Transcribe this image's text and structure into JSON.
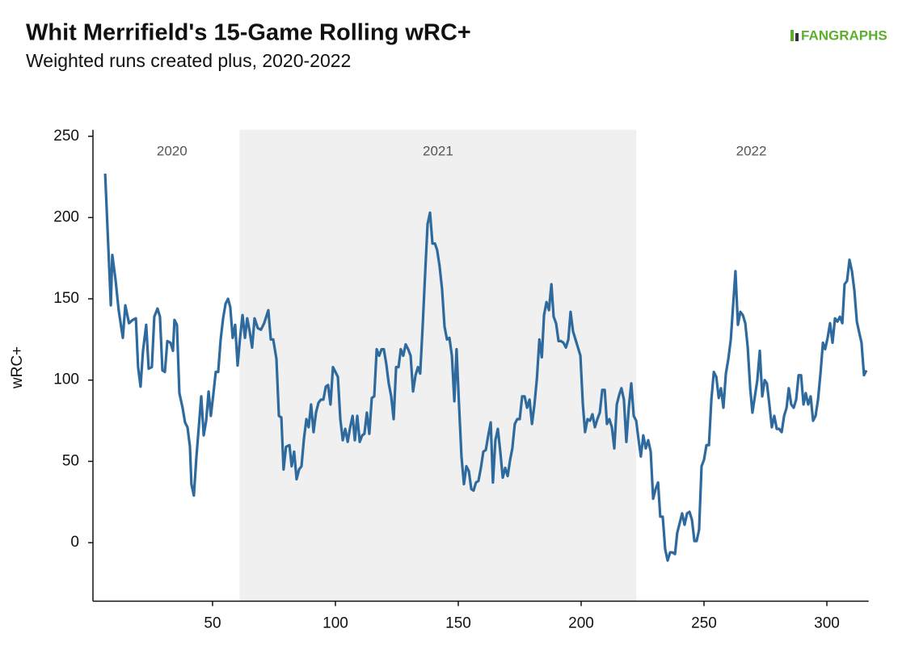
{
  "chart_data": {
    "type": "line",
    "title": "Whit Merrifield's 15-Game Rolling wRC+",
    "subtitle": "Weighted runs created plus, 2020-2022",
    "logo": "FANGRAPHS",
    "y_label": "wRC+",
    "xlim": [
      1,
      317
    ],
    "ylim": [
      -36,
      254
    ],
    "xticks": [
      50,
      100,
      150,
      200,
      250,
      300
    ],
    "yticks": [
      0,
      50,
      100,
      150,
      200,
      250
    ],
    "grid": false,
    "periods": [
      {
        "label": "2020",
        "start": 6,
        "end": 61,
        "shaded": false
      },
      {
        "label": "2021",
        "start": 61,
        "end": 222.5,
        "shaded": true
      },
      {
        "label": "2022",
        "start": 222.5,
        "end": 316,
        "shaded": false
      }
    ],
    "shade_color": "#f0f0f0",
    "series": [
      {
        "color": "#2e6a9e",
        "x": [
          6.3,
          8.6,
          9.2,
          10.5,
          11.8,
          13.5,
          14.5,
          16,
          17.5,
          18.8,
          19.7,
          20.7,
          21.7,
          23,
          24,
          25.3,
          26.3,
          27.6,
          28.6,
          29.6,
          30.6,
          31.6,
          32.9,
          33.9,
          34.5,
          35.5,
          36.5,
          37.8,
          38.8,
          39.8,
          40.8,
          41.4,
          42.4,
          43.4,
          44.4,
          45.4,
          46.4,
          47.4,
          48.4,
          49.3,
          50.3,
          51.3,
          52.3,
          53.3,
          54.3,
          55.3,
          56.3,
          57.2,
          58.2,
          59.2,
          60.2,
          61.2,
          62.2,
          63.2,
          64.1,
          65.1,
          66.1,
          67.1,
          68.4,
          69.7,
          71,
          72.7,
          73.7,
          74.7,
          76,
          77,
          78,
          78.9,
          79.9,
          81.3,
          82.2,
          83.2,
          84.2,
          85.2,
          86.2,
          87.2,
          88.2,
          89.1,
          90.1,
          91.1,
          92.1,
          93.1,
          94.1,
          95.1,
          96.1,
          97,
          98,
          99,
          100,
          101,
          102,
          103,
          104,
          105,
          106,
          107,
          107.9,
          108.9,
          109.9,
          110.9,
          111.8,
          112.8,
          113.8,
          114.8,
          115.8,
          116.8,
          117.8,
          118.8,
          119.7,
          120.7,
          121.7,
          122.7,
          123.7,
          124.7,
          125.7,
          126.6,
          127.6,
          128.6,
          129.6,
          130.6,
          131.6,
          132.6,
          133.6,
          134.5,
          135.5,
          136.5,
          137.5,
          138.5,
          139.5,
          140.5,
          141.4,
          142.4,
          143.4,
          144.4,
          145.4,
          146.4,
          147.4,
          148.4,
          149.3,
          150.3,
          151.3,
          152.3,
          153.3,
          154.3,
          155.3,
          156.2,
          157.2,
          158.2,
          159.2,
          160.2,
          161.2,
          162.2,
          163.2,
          164.1,
          165.1,
          166.1,
          167.1,
          168.1,
          169.1,
          170.1,
          171.1,
          172,
          173,
          174,
          175,
          176,
          177,
          178,
          179,
          180,
          181,
          182,
          183,
          184,
          184.9,
          185.9,
          186.9,
          187.9,
          188.8,
          189.8,
          190.8,
          191.8,
          192.8,
          193.8,
          194.8,
          195.7,
          196.7,
          197.7,
          198.7,
          199.7,
          200.7,
          201.6,
          202.6,
          203.6,
          204.6,
          205.6,
          206.6,
          207.6,
          208.6,
          209.6,
          210.5,
          211.5,
          212.5,
          213.5,
          214.5,
          215.5,
          216.4,
          217.4,
          218.4,
          219.4,
          220.4,
          221.4,
          222.4,
          223.4,
          224.3,
          225.3,
          226.3,
          227.3,
          228.3,
          229.3,
          230.3,
          231.3,
          232.2,
          233.2,
          234.2,
          235.2,
          236.2,
          237.2,
          238.2,
          239.1,
          240.1,
          241.1,
          242.1,
          243.1,
          244.1,
          245.1,
          246.1,
          247,
          248,
          249,
          250,
          251,
          252,
          253,
          254,
          255,
          256,
          256.9,
          257.9,
          258.9,
          259.9,
          260.9,
          261.8,
          262.8,
          263.8,
          264.8,
          265.8,
          266.8,
          267.8,
          268.8,
          269.7,
          270.7,
          271.7,
          272.7,
          273.7,
          274.7,
          275.6,
          276.6,
          277.6,
          278.6,
          279.6,
          280.6,
          281.6,
          282.6,
          283.6,
          284.5,
          285.5,
          286.5,
          287.5,
          288.5,
          289.5,
          290.5,
          291.4,
          292.4,
          293.4,
          294.4,
          295.4,
          296.4,
          297.4,
          298.4,
          299.3,
          300.3,
          301.3,
          302.3,
          303.3,
          304.3,
          305.3,
          306.3,
          307.2,
          308.2,
          309.2,
          310.2,
          311.2,
          312.2,
          313.2,
          314.1,
          315.1,
          316.1
        ],
        "values": [
          227,
          146,
          177,
          162,
          143,
          126,
          146,
          135,
          137,
          138,
          108,
          96,
          118,
          134,
          107,
          108,
          139,
          144,
          139,
          106,
          105,
          124,
          123,
          118,
          137,
          134,
          92,
          83,
          74,
          71,
          59,
          36,
          29,
          52,
          71,
          90,
          66,
          75,
          93,
          78,
          91,
          105,
          105,
          125,
          138,
          147,
          150,
          145,
          126,
          134,
          109,
          126,
          140,
          126,
          138,
          130,
          120,
          138,
          132,
          131,
          135,
          143,
          125,
          125,
          113,
          78,
          77,
          45,
          59,
          60,
          47,
          56,
          39,
          45,
          47,
          64,
          76,
          71,
          85,
          68,
          80,
          86,
          88,
          88,
          96,
          97,
          85,
          108,
          105,
          102,
          76,
          63,
          70,
          62,
          71,
          78,
          63,
          78,
          62,
          66,
          67,
          80,
          67,
          89,
          90,
          119,
          115,
          119,
          119,
          110,
          98,
          90,
          76,
          108,
          108,
          119,
          115,
          122,
          119,
          115,
          93,
          103,
          108,
          104,
          133,
          165,
          196,
          203,
          184,
          184,
          180,
          170,
          156,
          133,
          125,
          126,
          115,
          87,
          119,
          85,
          53,
          36,
          47,
          44,
          33,
          32,
          37,
          38,
          46,
          56,
          57,
          66,
          74,
          37,
          63,
          70,
          56,
          40,
          46,
          41,
          51,
          58,
          73,
          76,
          76,
          90,
          90,
          83,
          88,
          73,
          85,
          101,
          125,
          114,
          140,
          148,
          143,
          159,
          139,
          135,
          124,
          124,
          123,
          120,
          125,
          142,
          130,
          125,
          120,
          115,
          85,
          68,
          76,
          75,
          79,
          71,
          76,
          80,
          94,
          94,
          73,
          76,
          71,
          58,
          85,
          91,
          95,
          88,
          62,
          83,
          98,
          78,
          75,
          63,
          53,
          66,
          58,
          63,
          56,
          27,
          33,
          37,
          16,
          16,
          -4,
          -11,
          -6,
          -6,
          -7,
          6,
          12,
          18,
          11,
          18,
          19,
          14,
          1,
          1,
          8,
          47,
          51,
          60,
          60,
          88,
          105,
          102,
          89,
          95,
          83,
          104,
          113,
          125,
          145,
          167,
          134,
          142,
          140,
          135,
          120,
          95,
          80,
          90,
          100,
          118,
          90,
          100,
          98,
          85,
          71,
          78,
          70,
          70,
          68,
          78,
          83,
          95,
          85,
          83,
          88,
          103,
          103,
          85,
          92,
          85,
          90,
          75,
          78,
          88,
          104,
          123,
          119,
          126,
          135,
          123,
          138,
          136,
          139,
          135,
          159,
          161,
          174,
          167,
          155,
          136,
          129,
          123,
          103,
          106
        ]
      }
    ]
  }
}
